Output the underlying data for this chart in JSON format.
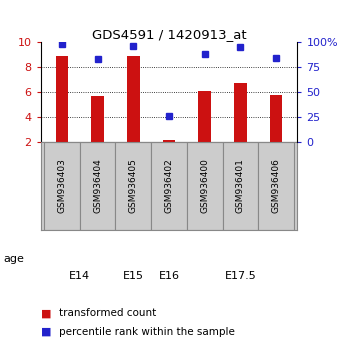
{
  "title": "GDS4591 / 1420913_at",
  "samples": [
    "GSM936403",
    "GSM936404",
    "GSM936405",
    "GSM936402",
    "GSM936400",
    "GSM936401",
    "GSM936406"
  ],
  "transformed_counts": [
    8.9,
    5.7,
    8.9,
    2.1,
    6.05,
    6.7,
    5.8
  ],
  "percentile_ranks": [
    98,
    83,
    96,
    26,
    88,
    95,
    84
  ],
  "age_groups": [
    {
      "label": "E14",
      "start": 0,
      "end": 1,
      "color": "#ccffcc"
    },
    {
      "label": "E15",
      "start": 2,
      "end": 2,
      "color": "#ccffcc"
    },
    {
      "label": "E16",
      "start": 3,
      "end": 3,
      "color": "#ccffcc"
    },
    {
      "label": "E17.5",
      "start": 4,
      "end": 6,
      "color": "#44ee44"
    }
  ],
  "ylim_left": [
    2,
    10
  ],
  "ylim_right": [
    0,
    100
  ],
  "yticks_left": [
    2,
    4,
    6,
    8,
    10
  ],
  "yticks_right": [
    0,
    25,
    50,
    75,
    100
  ],
  "ytick_labels_right": [
    "0",
    "25",
    "50",
    "75",
    "100%"
  ],
  "bar_color": "#cc1111",
  "dot_color": "#2222cc",
  "bar_width": 0.35,
  "bar_bottom": 2.0,
  "legend_items": [
    {
      "color": "#cc1111",
      "label": "transformed count"
    },
    {
      "color": "#2222cc",
      "label": "percentile rank within the sample"
    }
  ],
  "grid_yticks": [
    4,
    6,
    8
  ],
  "background_color": "#ffffff",
  "label_color_left": "#cc1111",
  "label_color_right": "#2222cc"
}
